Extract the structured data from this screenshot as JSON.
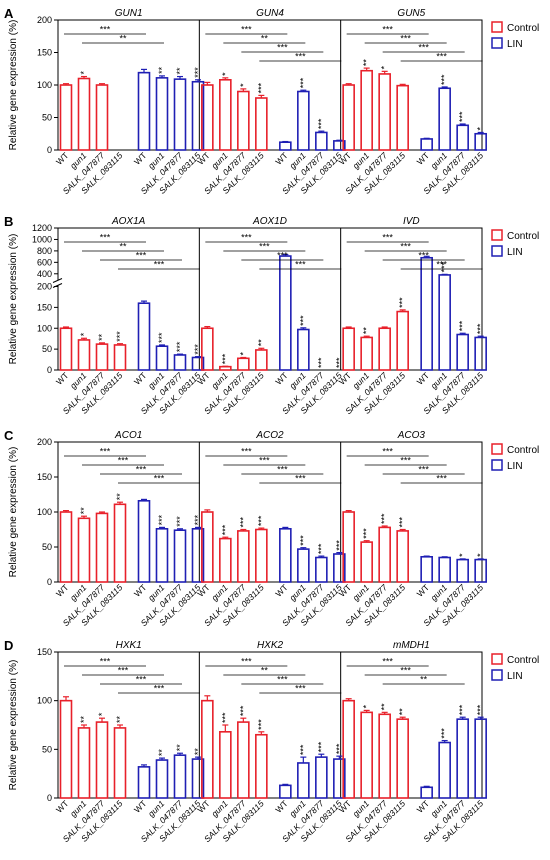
{
  "figure": {
    "ylabel": "Relative gene expression (%)",
    "xtick_labels": [
      "WT",
      "gun1",
      "SALK_047877",
      "SALK_083115"
    ],
    "legend": [
      {
        "label": "Control",
        "color": "#e8202a"
      },
      {
        "label": "LIN",
        "color": "#1f1fb4"
      }
    ]
  },
  "chart_data": [
    {
      "type": "bar",
      "panel_label": "A",
      "ylabel": "Relative gene expression (%)",
      "ylim": [
        0,
        200
      ],
      "yticks": [
        0,
        50,
        100,
        150,
        200
      ],
      "yticklabels": [
        "0",
        "50",
        "100",
        "150",
        "200"
      ],
      "series_names": [
        "Control",
        "LIN"
      ],
      "genes": [
        {
          "name": "GUN1",
          "control": [
            100,
            110,
            100,
            null
          ],
          "control_err": [
            2,
            3,
            2,
            0
          ],
          "lin": [
            119,
            111,
            109,
            105
          ],
          "lin_err": [
            5,
            3,
            4,
            3
          ],
          "control_stars": [
            "",
            "*",
            "",
            ""
          ],
          "lin_stars": [
            "",
            "**",
            "**",
            "***"
          ],
          "brackets": [
            {
              "label": "***"
            },
            {
              "label": "**"
            }
          ]
        },
        {
          "name": "GUN4",
          "control": [
            100,
            108,
            90,
            80
          ],
          "control_err": [
            4,
            3,
            4,
            4
          ],
          "lin": [
            12,
            90,
            27,
            14
          ],
          "lin_err": [
            1,
            2,
            2,
            1
          ],
          "control_stars": [
            "",
            "*",
            "*",
            "***"
          ],
          "lin_stars": [
            "",
            "***",
            "***",
            ""
          ],
          "brackets": [
            {
              "label": "***"
            },
            {
              "label": "**"
            },
            {
              "label": "***"
            },
            {
              "label": "***"
            }
          ]
        },
        {
          "name": "GUN5",
          "control": [
            100,
            122,
            117,
            99
          ],
          "control_err": [
            2,
            4,
            4,
            2
          ],
          "lin": [
            17,
            95,
            38,
            25
          ],
          "lin_err": [
            1,
            2,
            2,
            2
          ],
          "control_stars": [
            "",
            "**",
            "*",
            ""
          ],
          "lin_stars": [
            "",
            "***",
            "***",
            "*"
          ],
          "brackets": [
            {
              "label": "***"
            },
            {
              "label": "***"
            },
            {
              "label": "***"
            },
            {
              "label": "***"
            }
          ]
        }
      ]
    },
    {
      "type": "bar",
      "panel_label": "B",
      "ylabel": "Relative gene expression (%)",
      "ylim": [
        0,
        1200
      ],
      "axis_break": [
        200,
        300
      ],
      "yticks": [
        0,
        50,
        100,
        150,
        200,
        400,
        600,
        800,
        1000,
        1200
      ],
      "yticklabels": [
        "0",
        "50",
        "100",
        "150",
        "200",
        "400",
        "600",
        "800",
        "1000",
        "1200"
      ],
      "series_names": [
        "Control",
        "LIN"
      ],
      "genes": [
        {
          "name": "AOX1A",
          "control": [
            100,
            72,
            62,
            60
          ],
          "control_err": [
            3,
            4,
            3,
            3
          ],
          "lin": [
            160,
            57,
            36,
            30
          ],
          "lin_err": [
            5,
            3,
            2,
            2
          ],
          "control_stars": [
            "",
            "*",
            "**",
            "***"
          ],
          "lin_stars": [
            "",
            "***",
            "***",
            "***"
          ],
          "brackets": [
            {
              "label": "***"
            },
            {
              "label": "**"
            },
            {
              "label": "***"
            },
            {
              "label": "***"
            }
          ]
        },
        {
          "name": "AOX1D",
          "control": [
            100,
            8,
            28,
            48
          ],
          "control_err": [
            4,
            1,
            2,
            4
          ],
          "lin": [
            710,
            97,
            0,
            0
          ],
          "lin_err": [
            25,
            4,
            0,
            0
          ],
          "control_stars": [
            "",
            "***",
            "*",
            "**"
          ],
          "lin_stars": [
            "",
            "***",
            "***",
            "***"
          ],
          "brackets": [
            {
              "label": "***"
            },
            {
              "label": "***"
            },
            {
              "label": "***"
            },
            {
              "label": "***"
            }
          ]
        },
        {
          "name": "IVD",
          "control": [
            100,
            78,
            100,
            140
          ],
          "control_err": [
            3,
            3,
            3,
            4
          ],
          "lin": [
            680,
            380,
            85,
            78
          ],
          "lin_err": [
            25,
            10,
            3,
            3
          ],
          "control_stars": [
            "",
            "**",
            "",
            "***"
          ],
          "lin_stars": [
            "",
            "***",
            "***",
            "***"
          ],
          "brackets": [
            {
              "label": "***"
            },
            {
              "label": "***"
            },
            {
              "label": "***"
            },
            {
              "label": "***"
            }
          ]
        }
      ]
    },
    {
      "type": "bar",
      "panel_label": "C",
      "ylabel": "Relative gene expression (%)",
      "ylim": [
        0,
        200
      ],
      "yticks": [
        0,
        50,
        100,
        150,
        200
      ],
      "yticklabels": [
        "0",
        "50",
        "100",
        "150",
        "200"
      ],
      "series_names": [
        "Control",
        "LIN"
      ],
      "genes": [
        {
          "name": "ACO1",
          "control": [
            100,
            91,
            98,
            111
          ],
          "control_err": [
            2,
            3,
            2,
            3
          ],
          "lin": [
            116,
            76,
            74,
            76
          ],
          "lin_err": [
            2,
            2,
            2,
            2
          ],
          "control_stars": [
            "",
            "**",
            "",
            "**"
          ],
          "lin_stars": [
            "",
            "***",
            "***",
            "***"
          ],
          "brackets": [
            {
              "label": "***"
            },
            {
              "label": "***"
            },
            {
              "label": "***"
            },
            {
              "label": "***"
            }
          ]
        },
        {
          "name": "ACO2",
          "control": [
            100,
            62,
            73,
            75
          ],
          "control_err": [
            3,
            2,
            2,
            2
          ],
          "lin": [
            76,
            47,
            35,
            40
          ],
          "lin_err": [
            2,
            2,
            2,
            2
          ],
          "control_stars": [
            "",
            "***",
            "***",
            "***"
          ],
          "lin_stars": [
            "",
            "***",
            "***",
            "***"
          ],
          "brackets": [
            {
              "label": "***"
            },
            {
              "label": "***"
            },
            {
              "label": "***"
            },
            {
              "label": "***"
            }
          ]
        },
        {
          "name": "ACO3",
          "control": [
            100,
            57,
            78,
            73
          ],
          "control_err": [
            2,
            2,
            2,
            2
          ],
          "lin": [
            36,
            35,
            32,
            32
          ],
          "lin_err": [
            1,
            1,
            1,
            1
          ],
          "control_stars": [
            "",
            "***",
            "***",
            "***"
          ],
          "lin_stars": [
            "",
            "",
            "*",
            "*"
          ],
          "brackets": [
            {
              "label": "***"
            },
            {
              "label": "***"
            },
            {
              "label": "***"
            },
            {
              "label": "***"
            }
          ]
        }
      ]
    },
    {
      "type": "bar",
      "panel_label": "D",
      "ylabel": "Relative gene expression (%)",
      "ylim": [
        0,
        150
      ],
      "yticks": [
        0,
        50,
        100,
        150
      ],
      "yticklabels": [
        "0",
        "50",
        "100",
        "150"
      ],
      "series_names": [
        "Control",
        "LIN"
      ],
      "genes": [
        {
          "name": "HXK1",
          "control": [
            100,
            72,
            78,
            72
          ],
          "control_err": [
            4,
            3,
            4,
            3
          ],
          "lin": [
            32,
            39,
            44,
            40
          ],
          "lin_err": [
            2,
            2,
            2,
            2
          ],
          "control_stars": [
            "",
            "**",
            "*",
            "**"
          ],
          "lin_stars": [
            "",
            "**",
            "**",
            "**"
          ],
          "brackets": [
            {
              "label": "***"
            },
            {
              "label": "***"
            },
            {
              "label": "***"
            },
            {
              "label": "***"
            }
          ]
        },
        {
          "name": "HXK2",
          "control": [
            100,
            68,
            78,
            65
          ],
          "control_err": [
            5,
            7,
            4,
            3
          ],
          "lin": [
            13,
            36,
            42,
            40
          ],
          "lin_err": [
            1,
            6,
            3,
            3
          ],
          "control_stars": [
            "",
            "***",
            "***",
            "***"
          ],
          "lin_stars": [
            "",
            "***",
            "***",
            "***"
          ],
          "brackets": [
            {
              "label": "***"
            },
            {
              "label": "**"
            },
            {
              "label": "***"
            },
            {
              "label": "***"
            }
          ]
        },
        {
          "name": "mMDH1",
          "control": [
            100,
            88,
            86,
            81
          ],
          "control_err": [
            2,
            2,
            2,
            2
          ],
          "lin": [
            11,
            57,
            81,
            81
          ],
          "lin_err": [
            1,
            2,
            2,
            2
          ],
          "control_stars": [
            "",
            "*",
            "**",
            "**"
          ],
          "lin_stars": [
            "",
            "***",
            "***",
            "***"
          ],
          "brackets": [
            {
              "label": "***"
            },
            {
              "label": "***"
            },
            {
              "label": "**"
            }
          ]
        }
      ]
    }
  ]
}
